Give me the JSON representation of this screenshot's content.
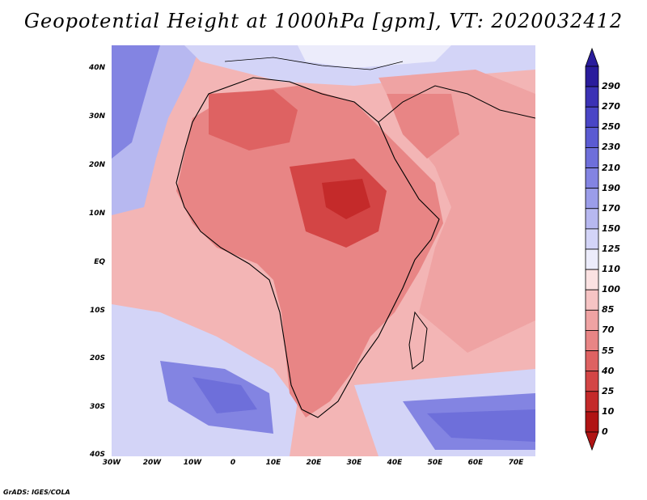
{
  "title": "Geopotential Height at 1000hPa [gpm], VT: 2020032412",
  "map": {
    "lat_labels": [
      "40N",
      "30N",
      "20N",
      "10N",
      "EQ",
      "10S",
      "20S",
      "30S",
      "40S"
    ],
    "lon_labels": [
      "30W",
      "20W",
      "10W",
      "0",
      "10E",
      "20E",
      "30E",
      "40E",
      "50E",
      "60E",
      "70E"
    ]
  },
  "legend": {
    "levels": [
      "290",
      "270",
      "250",
      "230",
      "210",
      "190",
      "170",
      "150",
      "125",
      "110",
      "100",
      "85",
      "70",
      "55",
      "40",
      "25",
      "10",
      "0"
    ],
    "colors": [
      "#2a1c9c",
      "#3b32b5",
      "#4a46c6",
      "#5b5bd2",
      "#6e6fda",
      "#8384e2",
      "#9b9de9",
      "#b7b8f0",
      "#d3d4f7",
      "#ececfb",
      "#fbe2e2",
      "#f6c4c4",
      "#efa3a3",
      "#e88585",
      "#de6262",
      "#d34545",
      "#c42a2a",
      "#b01414"
    ]
  },
  "credit": "GrADS: IGES/COLA"
}
